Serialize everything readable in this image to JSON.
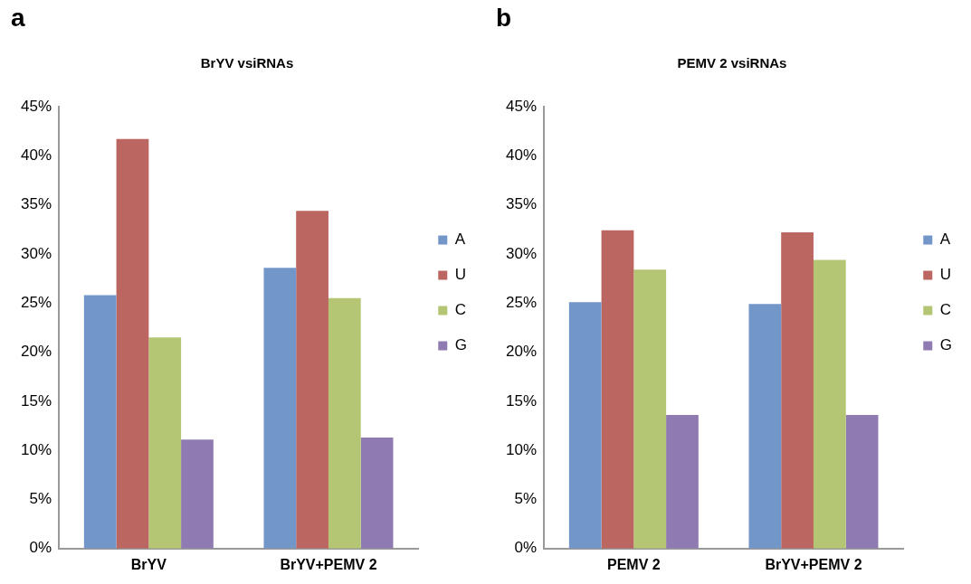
{
  "chart_data": [
    {
      "type": "bar",
      "title": "BrYV vsiRNAs",
      "annotations": [
        "a"
      ],
      "categories": [
        "BrYV",
        "BrYV+PEMV 2"
      ],
      "series": [
        {
          "name": "A",
          "color": "#7396c9",
          "values": [
            25.8,
            28.6
          ]
        },
        {
          "name": "U",
          "color": "#bb6660",
          "values": [
            41.7,
            34.4
          ]
        },
        {
          "name": "C",
          "color": "#b4c673",
          "values": [
            21.5,
            25.5
          ]
        },
        {
          "name": "G",
          "color": "#8f7bb2",
          "values": [
            11.1,
            11.3
          ]
        }
      ],
      "ylim": [
        0,
        45
      ],
      "yticks": [
        {
          "value": 0,
          "label": "0%"
        },
        {
          "value": 5,
          "label": "5%"
        },
        {
          "value": 10,
          "label": "10%"
        },
        {
          "value": 15,
          "label": "15%"
        },
        {
          "value": 20,
          "label": "20%"
        },
        {
          "value": 25,
          "label": "25%"
        },
        {
          "value": 30,
          "label": "30%"
        },
        {
          "value": 35,
          "label": "35%"
        },
        {
          "value": 40,
          "label": "40%"
        },
        {
          "value": 45,
          "label": "45%"
        }
      ],
      "grid": false,
      "legend": "right"
    },
    {
      "type": "bar",
      "title": "PEMV 2 vsiRNAs",
      "annotations": [
        "b"
      ],
      "categories": [
        "PEMV 2",
        "BrYV+PEMV 2"
      ],
      "series": [
        {
          "name": "A",
          "color": "#7396c9",
          "values": [
            25.1,
            24.9
          ]
        },
        {
          "name": "U",
          "color": "#bb6660",
          "values": [
            32.4,
            32.2
          ]
        },
        {
          "name": "C",
          "color": "#b4c673",
          "values": [
            28.4,
            29.4
          ]
        },
        {
          "name": "G",
          "color": "#8f7bb2",
          "values": [
            13.6,
            13.6
          ]
        }
      ],
      "ylim": [
        0,
        45
      ],
      "yticks": [
        {
          "value": 0,
          "label": "0%"
        },
        {
          "value": 5,
          "label": "5%"
        },
        {
          "value": 10,
          "label": "10%"
        },
        {
          "value": 15,
          "label": "15%"
        },
        {
          "value": 20,
          "label": "20%"
        },
        {
          "value": 25,
          "label": "25%"
        },
        {
          "value": 30,
          "label": "30%"
        },
        {
          "value": 35,
          "label": "35%"
        },
        {
          "value": 40,
          "label": "40%"
        },
        {
          "value": 45,
          "label": "45%"
        }
      ],
      "grid": false,
      "legend": "right"
    }
  ]
}
